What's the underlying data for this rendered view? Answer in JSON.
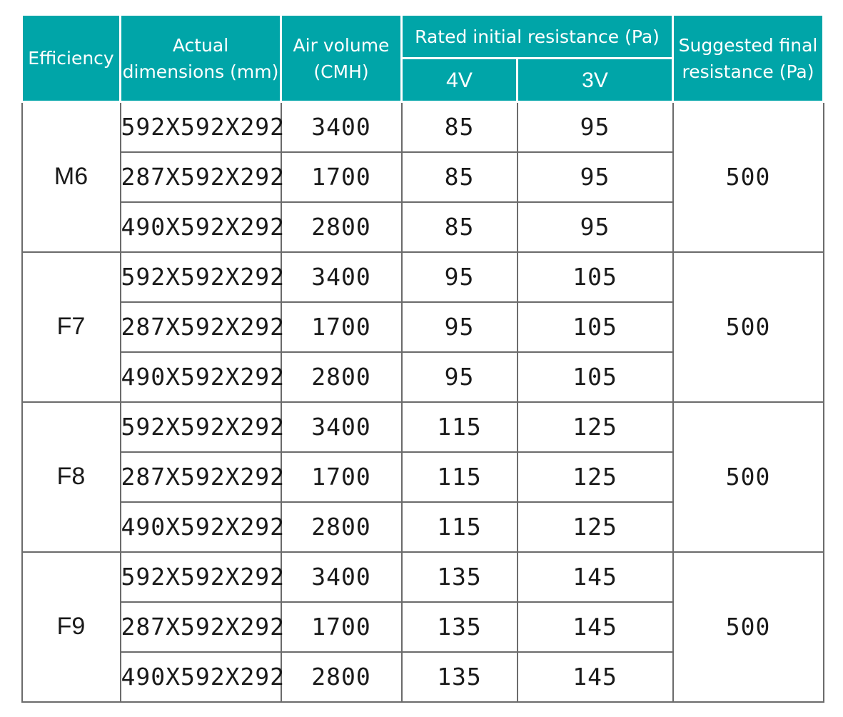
{
  "header": {
    "efficiency": "Efficiency",
    "dimensions": "Actual dimensions (mm)",
    "air_volume": "Air volume (CMH)",
    "rated_resistance": "Rated initial resistance (Pa)",
    "v4": "4V",
    "v3": "3V",
    "final_resistance": "Suggested final resistance (Pa)"
  },
  "groups": [
    {
      "efficiency": "M6",
      "final": "500",
      "rows": [
        {
          "dims": "592X592X292",
          "air": "3400",
          "r4": "85",
          "r3": "95"
        },
        {
          "dims": "287X592X292",
          "air": "1700",
          "r4": "85",
          "r3": "95"
        },
        {
          "dims": "490X592X292",
          "air": "2800",
          "r4": "85",
          "r3": "95"
        }
      ]
    },
    {
      "efficiency": "F7",
      "final": "500",
      "rows": [
        {
          "dims": "592X592X292",
          "air": "3400",
          "r4": "95",
          "r3": "105"
        },
        {
          "dims": "287X592X292",
          "air": "1700",
          "r4": "95",
          "r3": "105"
        },
        {
          "dims": "490X592X292",
          "air": "2800",
          "r4": "95",
          "r3": "105"
        }
      ]
    },
    {
      "efficiency": "F8",
      "final": "500",
      "rows": [
        {
          "dims": "592X592X292",
          "air": "3400",
          "r4": "115",
          "r3": "125"
        },
        {
          "dims": "287X592X292",
          "air": "1700",
          "r4": "115",
          "r3": "125"
        },
        {
          "dims": "490X592X292",
          "air": "2800",
          "r4": "115",
          "r3": "125"
        }
      ]
    },
    {
      "efficiency": "F9",
      "final": "500",
      "rows": [
        {
          "dims": "592X592X292",
          "air": "3400",
          "r4": "135",
          "r3": "145"
        },
        {
          "dims": "287X592X292",
          "air": "1700",
          "r4": "135",
          "r3": "145"
        },
        {
          "dims": "490X592X292",
          "air": "2800",
          "r4": "135",
          "r3": "145"
        }
      ]
    }
  ]
}
